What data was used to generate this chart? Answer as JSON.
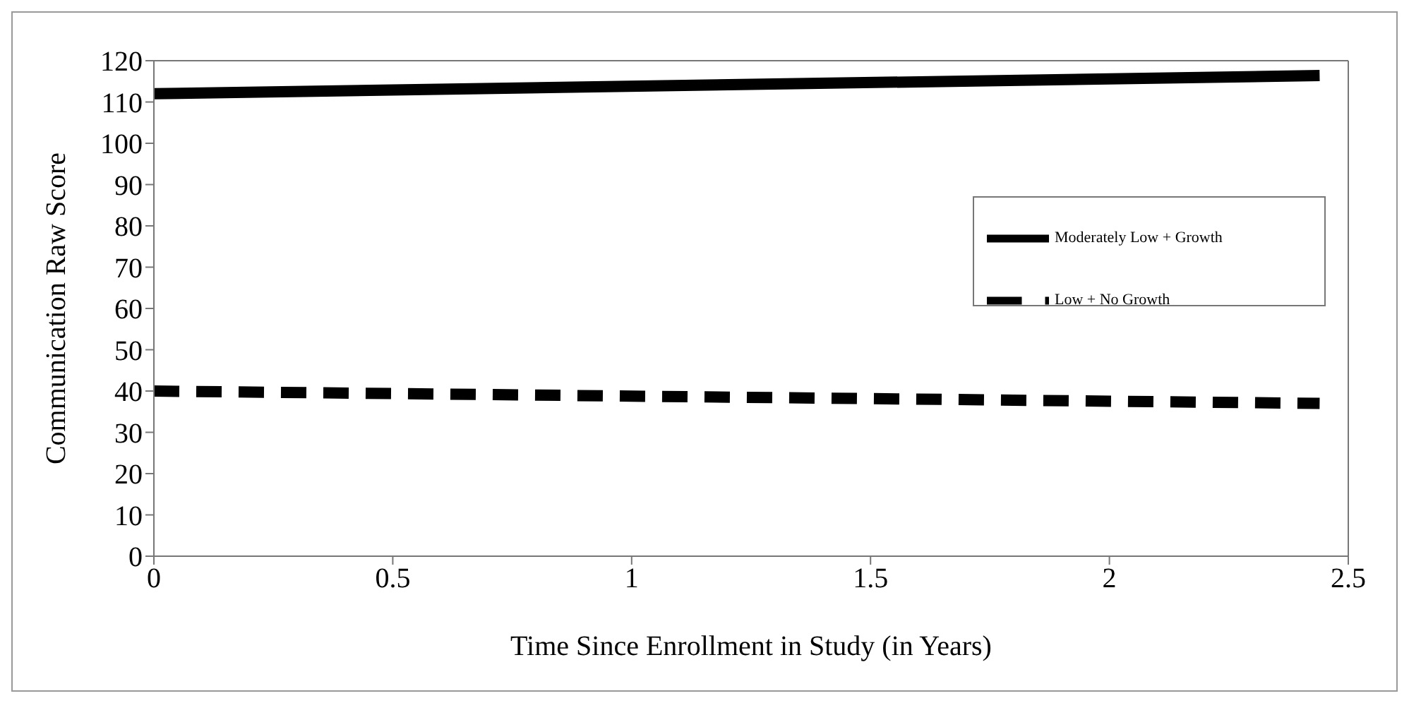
{
  "chart_data": {
    "type": "line",
    "xlabel": "Time Since Enrollment in Study (in Years)",
    "ylabel": "Communication Raw Score",
    "x": [
      0,
      2.44
    ],
    "series": [
      {
        "name": "Moderately Low + Growth",
        "color": "#000000",
        "values": [
          112,
          116.4
        ],
        "line_style": "solid"
      },
      {
        "name": "Low + No Growth",
        "color": "#000000",
        "values": [
          40,
          37
        ],
        "line_style": "dashed"
      }
    ],
    "xlim": [
      0,
      2.5
    ],
    "xticks": [
      0,
      0.5,
      1,
      1.5,
      2,
      2.5
    ],
    "ylim": [
      0,
      120
    ],
    "yticks": [
      0,
      10,
      20,
      30,
      40,
      50,
      60,
      70,
      80,
      90,
      100,
      110,
      120
    ],
    "grid": false,
    "legend": "right",
    "marker": "none"
  }
}
